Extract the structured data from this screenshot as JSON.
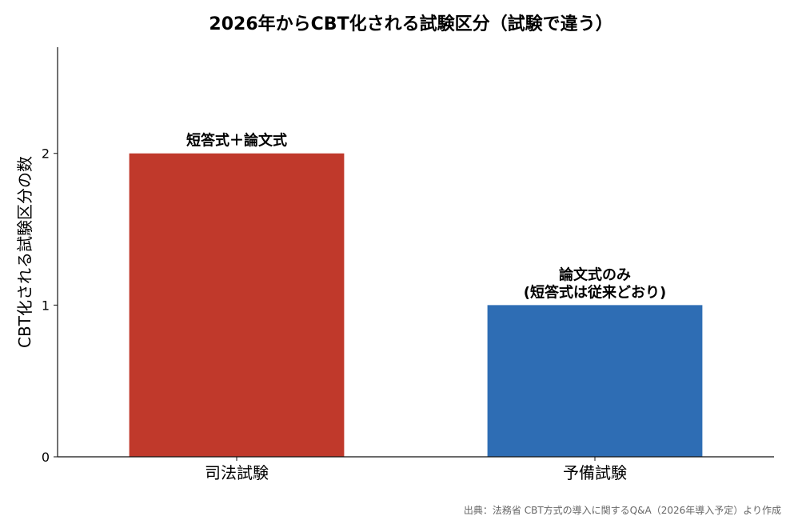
{
  "chart_data": {
    "type": "bar",
    "title": "2026年からCBT化される試験区分（試験で違う）",
    "xlabel": "",
    "ylabel": "CBT化される試験区分の数",
    "categories": [
      "司法試験",
      "予備試験"
    ],
    "values": [
      2,
      1
    ],
    "colors": [
      "#c0392b",
      "#2e6db4"
    ],
    "data_labels": [
      [
        "短答式＋論文式"
      ],
      [
        "論文式のみ",
        "(短答式は従来どおり)"
      ]
    ],
    "ylim": [
      0,
      2.7
    ],
    "yticks": [
      0,
      1,
      2
    ],
    "grid": false,
    "legend": "none"
  },
  "source_note": "出典：法務省 CBT方式の導入に関するQ&A（2026年導入予定）より作成"
}
